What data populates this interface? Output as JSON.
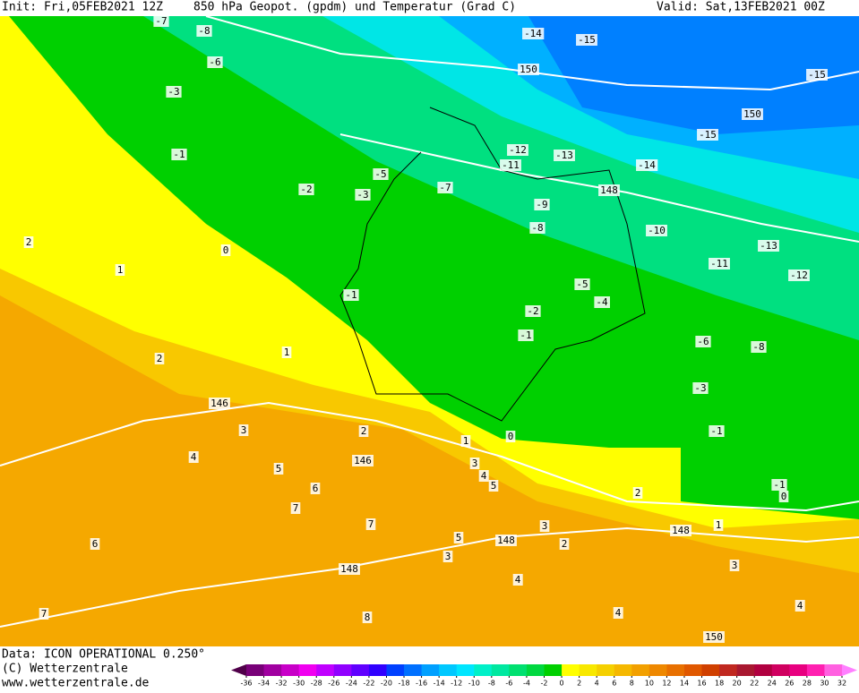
{
  "header": {
    "init": "Init: Fri,05FEB2021 12Z",
    "title": "850 hPa Geopot. (gpdm) und Temperatur (Grad C)",
    "valid": "Valid: Sat,13FEB2021 00Z"
  },
  "footer": {
    "lines": [
      "Data: ICON OPERATIONAL 0.250°",
      "(C) Wetterzentrale",
      "www.wetterzentrale.de"
    ]
  },
  "contour_labels": [
    "-7",
    "-8",
    "-6",
    "-3",
    "-1",
    "-2",
    "-3",
    "-5",
    "-7",
    "-14",
    "-15",
    "150",
    "-15",
    "150",
    "-15",
    "-12",
    "-11",
    "-13",
    "-14",
    "148",
    "-9",
    "-8",
    "-10",
    "-13",
    "-11",
    "-12",
    "-1",
    "-5",
    "-4",
    "-2",
    "-1",
    "-6",
    "-8",
    "-3",
    "-1",
    "0",
    "0",
    "1",
    "2",
    "1",
    "2",
    "146",
    "3",
    "4",
    "5",
    "146",
    "2",
    "1",
    "3",
    "4",
    "5",
    "6",
    "7",
    "6",
    "7",
    "148",
    "148",
    "5",
    "3",
    "2",
    "3",
    "4",
    "148",
    "2",
    "3",
    "4",
    "4",
    "150",
    "7",
    "8",
    "0",
    "-1",
    "1"
  ],
  "colorbar": {
    "ticks": [
      -36,
      -34,
      -32,
      -30,
      -28,
      -26,
      -24,
      -22,
      -20,
      -18,
      -16,
      -14,
      -12,
      -10,
      -8,
      -6,
      -4,
      -2,
      0,
      2,
      4,
      6,
      8,
      10,
      12,
      14,
      16,
      18,
      20,
      22,
      24,
      26,
      28,
      30,
      32
    ],
    "colors": [
      "#50004a",
      "#780078",
      "#a000a0",
      "#c800c8",
      "#f000f0",
      "#c000ff",
      "#9000ff",
      "#6000ff",
      "#3000ff",
      "#0040ff",
      "#0070ff",
      "#00a0ff",
      "#00c8ff",
      "#00e6ff",
      "#00f0c8",
      "#00e8a0",
      "#00e070",
      "#00d840",
      "#00d000",
      "#ffff00",
      "#f8e800",
      "#f5d000",
      "#f5b800",
      "#f2a000",
      "#ee8800",
      "#e87000",
      "#e05800",
      "#d04000",
      "#c02820",
      "#a81830",
      "#b00040",
      "#d00060",
      "#e80080",
      "#ff20b0",
      "#ff60e0",
      "#ff80ff"
    ]
  }
}
